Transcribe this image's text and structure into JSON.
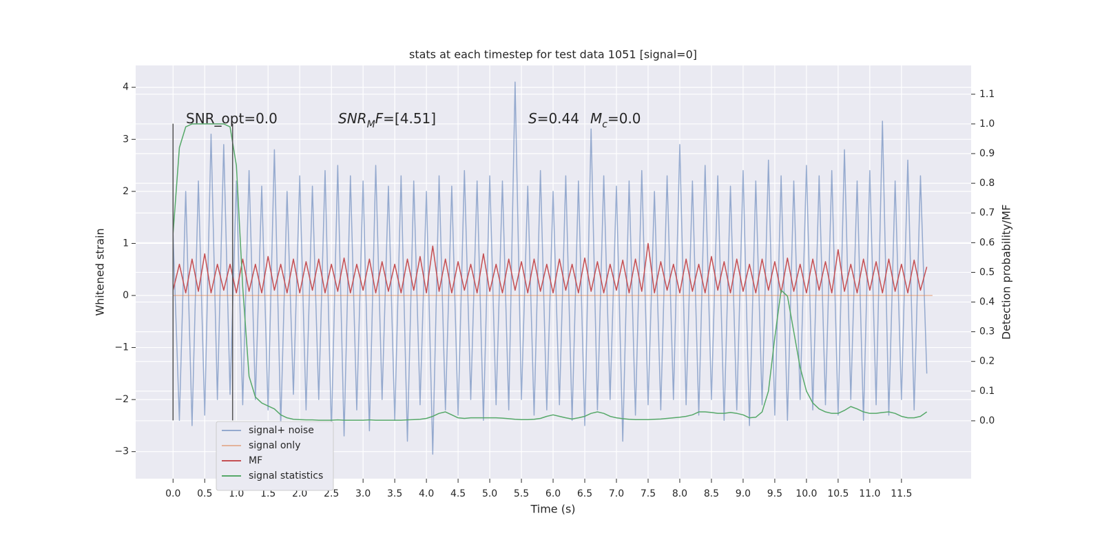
{
  "chart_data": {
    "type": "line",
    "title": "stats at each timestep for test data 1051 [signal=0]",
    "xlabel": "Time (s)",
    "ylabel": "Whitened strain",
    "y2label": "Detection probability/MF",
    "xlim": [
      -0.59,
      12.6
    ],
    "ylim": [
      -3.52,
      4.42
    ],
    "y2lim": [
      -0.195,
      1.197
    ],
    "xticks": [
      {
        "value": 0,
        "label": "0.0"
      },
      0.5,
      {
        "value": 1,
        "label": "1.0"
      },
      1.5,
      {
        "value": 2,
        "label": "2.0"
      },
      2.5,
      {
        "value": 3,
        "label": "3.0"
      },
      3.5,
      {
        "value": 4,
        "label": "4.0"
      },
      4.5,
      {
        "value": 5,
        "label": "5.0"
      },
      5.5,
      {
        "value": 6,
        "label": "6.0"
      },
      6.5,
      {
        "value": 7,
        "label": "7.0"
      },
      7.5,
      {
        "value": 8,
        "label": "8.0"
      },
      8.5,
      {
        "value": 9,
        "label": "9.0"
      },
      9.5,
      {
        "value": 10,
        "label": "10.0"
      },
      10.5,
      {
        "value": 11,
        "label": "11.0"
      },
      11.5
    ],
    "yticks": [
      {
        "value": -3,
        "label": "−3"
      },
      {
        "value": -2,
        "label": "−2"
      },
      {
        "value": -1,
        "label": "−1"
      },
      0,
      1,
      2,
      3,
      4
    ],
    "y2ticks": [
      {
        "value": 0,
        "label": "0.0"
      },
      0.1,
      0.2,
      0.3,
      0.4,
      0.5,
      0.6,
      0.7,
      0.8,
      0.9,
      {
        "value": 1,
        "label": "1.0"
      },
      1.1
    ],
    "grid": true,
    "x": [
      0,
      0.1,
      0.2,
      0.3,
      0.4,
      0.5,
      0.6,
      0.7,
      0.8,
      0.9,
      1,
      1.1,
      1.2,
      1.3,
      1.4,
      1.5,
      1.6,
      1.7,
      1.8,
      1.9,
      2,
      2.1,
      2.2,
      2.3,
      2.4,
      2.5,
      2.6,
      2.7,
      2.8,
      2.9,
      3,
      3.1,
      3.2,
      3.3,
      3.4,
      3.5,
      3.6,
      3.7,
      3.8,
      3.9,
      4,
      4.1,
      4.2,
      4.3,
      4.4,
      4.5,
      4.6,
      4.7,
      4.8,
      4.9,
      5,
      5.1,
      5.2,
      5.3,
      5.4,
      5.5,
      5.6,
      5.7,
      5.8,
      5.9,
      6,
      6.1,
      6.2,
      6.3,
      6.4,
      6.5,
      6.6,
      6.7,
      6.8,
      6.9,
      7,
      7.1,
      7.2,
      7.3,
      7.4,
      7.5,
      7.6,
      7.7,
      7.8,
      7.9,
      8,
      8.1,
      8.2,
      8.3,
      8.4,
      8.5,
      8.6,
      8.7,
      8.8,
      8.9,
      9,
      9.1,
      9.2,
      9.3,
      9.4,
      9.5,
      9.6,
      9.7,
      9.8,
      9.9,
      10,
      10.1,
      10.2,
      10.3,
      10.4,
      10.5,
      10.6,
      10.7,
      10.8,
      10.9,
      11,
      11.1,
      11.2,
      11.3,
      11.4,
      11.5,
      11.6,
      11.7,
      11.8,
      11.9
    ],
    "series": [
      {
        "name": "signal+ noise",
        "color": "#4c72b0",
        "alpha": 0.55,
        "values": [
          1.2,
          -2.4,
          2.0,
          -2.5,
          2.2,
          -2.3,
          3.1,
          -2.0,
          2.9,
          -1.9,
          2.2,
          -2.1,
          2.4,
          -2.0,
          2.1,
          -2.2,
          2.8,
          -2.5,
          2.0,
          -1.9,
          2.3,
          -2.2,
          2.1,
          -2.0,
          2.4,
          -2.6,
          2.5,
          -2.7,
          2.3,
          -2.2,
          2.2,
          -2.6,
          2.5,
          -2.0,
          2.1,
          -2.4,
          2.3,
          -2.8,
          2.2,
          -2.1,
          2.0,
          -3.05,
          2.3,
          -2.2,
          2.1,
          -2.3,
          2.4,
          -2.0,
          2.2,
          -2.4,
          2.3,
          -2.1,
          2.2,
          -2.2,
          4.1,
          -2.0,
          2.1,
          -2.3,
          2.4,
          -2.2,
          2.0,
          -2.1,
          2.3,
          -2.4,
          2.2,
          -2.5,
          3.2,
          -2.2,
          2.3,
          -2.0,
          2.1,
          -2.8,
          2.2,
          -2.3,
          2.4,
          -2.1,
          2.0,
          -2.2,
          2.3,
          -2.0,
          2.9,
          -2.1,
          2.2,
          -2.3,
          2.5,
          -2.0,
          2.3,
          -2.4,
          2.1,
          -2.2,
          2.4,
          -2.5,
          2.2,
          -2.1,
          2.6,
          -2.3,
          2.3,
          -2.4,
          2.2,
          -2.0,
          2.5,
          -2.2,
          2.3,
          -2.1,
          2.4,
          -2.3,
          2.8,
          -2.0,
          2.2,
          -2.4,
          2.4,
          -2.1,
          3.35,
          -2.3,
          2.2,
          -2.0,
          2.6,
          -2.2,
          2.3,
          -1.5
        ]
      },
      {
        "name": "signal only",
        "color": "#dd8452",
        "alpha": 0.55,
        "x": [
          0,
          11.99
        ],
        "values": [
          0,
          0
        ]
      },
      {
        "name": "MF",
        "color": "#c44e52",
        "alpha": 1,
        "values": [
          0.1,
          0.6,
          0.05,
          0.7,
          0.08,
          0.8,
          0.05,
          0.6,
          0.1,
          0.6,
          0.05,
          0.7,
          0.08,
          0.6,
          0.05,
          0.75,
          0.1,
          0.6,
          0.05,
          0.7,
          0.05,
          0.65,
          0.1,
          0.7,
          0.05,
          0.6,
          0.08,
          0.72,
          0.05,
          0.6,
          0.1,
          0.7,
          0.05,
          0.65,
          0.08,
          0.6,
          0.05,
          0.7,
          0.1,
          0.75,
          0.05,
          0.95,
          0.08,
          0.7,
          0.05,
          0.65,
          0.1,
          0.6,
          0.05,
          0.8,
          0.08,
          0.6,
          0.05,
          0.7,
          0.1,
          0.65,
          0.05,
          0.7,
          0.08,
          0.6,
          0.05,
          0.7,
          0.1,
          0.6,
          0.05,
          0.72,
          0.08,
          0.65,
          0.05,
          0.6,
          0.1,
          0.68,
          0.05,
          0.7,
          0.08,
          1.0,
          0.05,
          0.65,
          0.1,
          0.6,
          0.05,
          0.7,
          0.08,
          0.6,
          0.05,
          0.75,
          0.1,
          0.65,
          0.05,
          0.7,
          0.08,
          0.6,
          0.05,
          0.7,
          0.1,
          0.65,
          0.05,
          0.72,
          0.08,
          0.6,
          0.05,
          0.7,
          0.1,
          0.65,
          0.05,
          0.88,
          0.08,
          0.6,
          0.05,
          0.7,
          0.1,
          0.65,
          0.05,
          0.7,
          0.08,
          0.6,
          0.05,
          0.68,
          0.1,
          0.55
        ]
      },
      {
        "name": "signal statistics",
        "color": "#55a868",
        "alpha": 1,
        "axis": "y2",
        "values": [
          0.63,
          0.92,
          0.99,
          1.0,
          1.0,
          1.0,
          1.0,
          1.0,
          1.0,
          0.99,
          0.86,
          0.45,
          0.15,
          0.08,
          0.06,
          0.05,
          0.04,
          0.02,
          0.01,
          0.005,
          0.004,
          0.003,
          0.003,
          0.002,
          0.002,
          0.002,
          0.003,
          0.002,
          0.002,
          0.002,
          0.002,
          0.003,
          0.002,
          0.002,
          0.002,
          0.002,
          0.002,
          0.003,
          0.004,
          0.005,
          0.008,
          0.015,
          0.025,
          0.03,
          0.02,
          0.01,
          0.008,
          0.01,
          0.01,
          0.01,
          0.01,
          0.01,
          0.009,
          0.007,
          0.005,
          0.004,
          0.004,
          0.005,
          0.008,
          0.015,
          0.02,
          0.015,
          0.01,
          0.006,
          0.01,
          0.015,
          0.025,
          0.03,
          0.025,
          0.015,
          0.01,
          0.007,
          0.005,
          0.004,
          0.004,
          0.004,
          0.005,
          0.006,
          0.008,
          0.01,
          0.012,
          0.015,
          0.02,
          0.03,
          0.03,
          0.028,
          0.025,
          0.025,
          0.028,
          0.025,
          0.02,
          0.01,
          0.012,
          0.03,
          0.1,
          0.28,
          0.44,
          0.42,
          0.3,
          0.18,
          0.1,
          0.06,
          0.04,
          0.03,
          0.025,
          0.025,
          0.035,
          0.048,
          0.04,
          0.03,
          0.025,
          0.025,
          0.028,
          0.03,
          0.025,
          0.015,
          0.01,
          0.01,
          0.015,
          0.03
        ]
      }
    ],
    "vlines": [
      {
        "x": 0,
        "ymin": -2.4,
        "ymax": 3.3,
        "color": "#555555"
      },
      {
        "x": 0.94,
        "ymin": -2.4,
        "ymax": 3.3,
        "color": "#555555"
      }
    ],
    "annotations": [
      [
        {
          "text": "SNR_opt=0.0",
          "style": "normal"
        }
      ],
      [
        {
          "text": "SNR",
          "style": "italic"
        },
        {
          "text": "M",
          "style": "sub"
        },
        {
          "text": "F",
          "style": "italic"
        },
        {
          "text": "=[4.51]",
          "style": "normal"
        }
      ],
      [
        {
          "text": "S",
          "style": "italic"
        },
        {
          "text": "=0.44",
          "style": "normal"
        },
        {
          "text": "M",
          "style": "italic"
        },
        {
          "text": "c",
          "style": "sub"
        },
        {
          "text": "=0.0",
          "style": "normal"
        }
      ]
    ]
  }
}
